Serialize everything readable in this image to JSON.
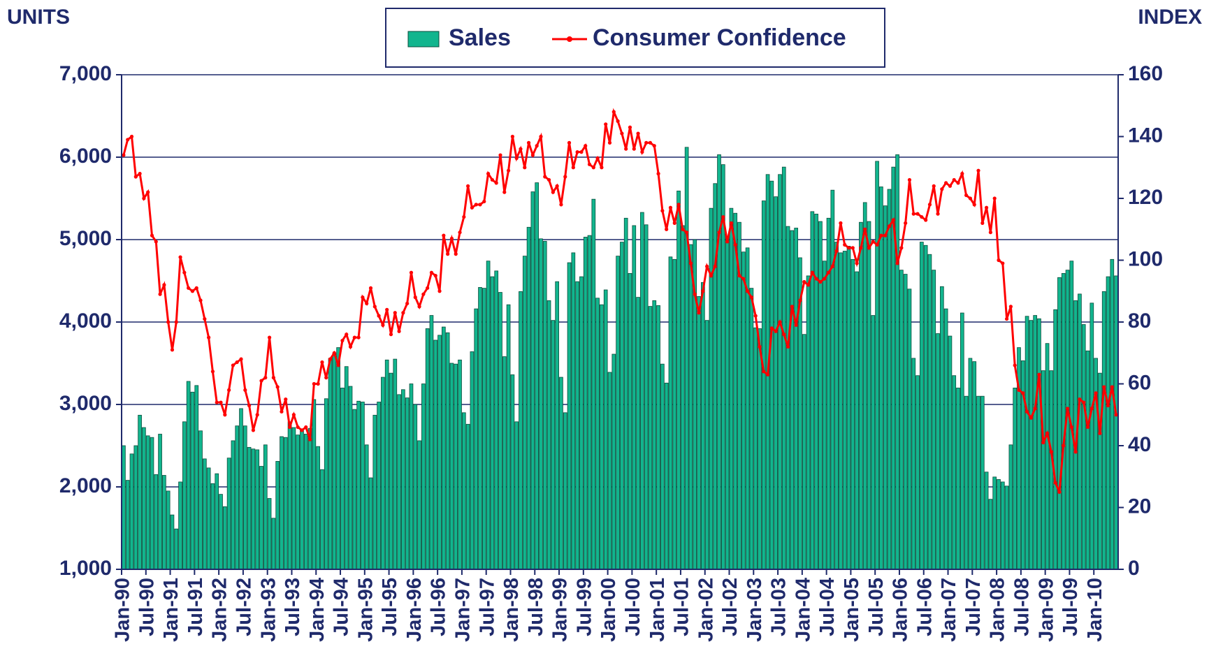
{
  "chart_data": {
    "type": "combo",
    "left_axis_title": "UNITS",
    "right_axis_title": "INDEX",
    "ylim": [
      1000,
      7000
    ],
    "yticks": [
      {
        "value": 1000,
        "label": "1,000"
      },
      {
        "value": 2000,
        "label": "2,000"
      },
      {
        "value": 3000,
        "label": "3,000"
      },
      {
        "value": 4000,
        "label": "4,000"
      },
      {
        "value": 5000,
        "label": "5,000"
      },
      {
        "value": 6000,
        "label": "6,000"
      },
      {
        "value": 7000,
        "label": "7,000"
      }
    ],
    "y2lim": [
      0,
      160
    ],
    "y2ticks": [
      0,
      20,
      40,
      60,
      80,
      100,
      120,
      140,
      160
    ],
    "grid": true,
    "legend": "top",
    "categories": [
      "Jan-90",
      null,
      null,
      null,
      null,
      null,
      "Jul-90",
      null,
      null,
      null,
      null,
      null,
      "Jan-91",
      null,
      null,
      null,
      null,
      null,
      "Jul-91",
      null,
      null,
      null,
      null,
      null,
      "Jan-92",
      null,
      null,
      null,
      null,
      null,
      "Jul-92",
      null,
      null,
      null,
      null,
      null,
      "Jan-93",
      null,
      null,
      null,
      null,
      null,
      "Jul-93",
      null,
      null,
      null,
      null,
      null,
      "Jan-94",
      null,
      null,
      null,
      null,
      null,
      "Jul-94",
      null,
      null,
      null,
      null,
      null,
      "Jan-95",
      null,
      null,
      null,
      null,
      null,
      "Jul-95",
      null,
      null,
      null,
      null,
      null,
      "Jan-96",
      null,
      null,
      null,
      null,
      null,
      "Jul-96",
      null,
      null,
      null,
      null,
      null,
      "Jan-97",
      null,
      null,
      null,
      null,
      null,
      "Jul-97",
      null,
      null,
      null,
      null,
      null,
      "Jan-98",
      null,
      null,
      null,
      null,
      null,
      "Jul-98",
      null,
      null,
      null,
      null,
      null,
      "Jan-99",
      null,
      null,
      null,
      null,
      null,
      "Jul-99",
      null,
      null,
      null,
      null,
      null,
      "Jan-00",
      null,
      null,
      null,
      null,
      null,
      "Jul-00",
      null,
      null,
      null,
      null,
      null,
      "Jan-01",
      null,
      null,
      null,
      null,
      null,
      "Jul-01",
      null,
      null,
      null,
      null,
      null,
      "Jan-02",
      null,
      null,
      null,
      null,
      null,
      "Jul-02",
      null,
      null,
      null,
      null,
      null,
      "Jan-03",
      null,
      null,
      null,
      null,
      null,
      "Jul-03",
      null,
      null,
      null,
      null,
      null,
      "Jan-04",
      null,
      null,
      null,
      null,
      null,
      "Jul-04",
      null,
      null,
      null,
      null,
      null,
      "Jan-05",
      null,
      null,
      null,
      null,
      null,
      "Jul-05",
      null,
      null,
      null,
      null,
      null,
      "Jan-06",
      null,
      null,
      null,
      null,
      null,
      "Jul-06",
      null,
      null,
      null,
      null,
      null,
      "Jan-07",
      null,
      null,
      null,
      null,
      null,
      "Jul-07",
      null,
      null,
      null,
      null,
      null,
      "Jan-08",
      null,
      null,
      null,
      null,
      null,
      "Jul-08",
      null,
      null,
      null,
      null,
      null,
      "Jan-09",
      null,
      null,
      null,
      null,
      null,
      "Jul-09",
      null,
      null,
      null,
      null,
      null,
      "Jan-10",
      null,
      null,
      null,
      null,
      null
    ],
    "series": [
      {
        "name": "Sales",
        "type": "bar",
        "color": "#12b58e",
        "values": [
          2500,
          2080,
          2400,
          2500,
          2870,
          2720,
          2620,
          2600,
          2150,
          2640,
          2140,
          1950,
          1660,
          1490,
          2060,
          2790,
          3280,
          3150,
          3230,
          2680,
          2340,
          2230,
          2040,
          2160,
          1910,
          1760,
          2350,
          2560,
          2740,
          2950,
          2740,
          2480,
          2460,
          2450,
          2250,
          2510,
          1860,
          1620,
          2310,
          2610,
          2600,
          2790,
          2720,
          2630,
          2700,
          2640,
          2710,
          3060,
          2490,
          2210,
          3070,
          3560,
          3620,
          3690,
          3200,
          3460,
          3220,
          2940,
          3040,
          3030,
          2510,
          2110,
          2870,
          3030,
          3330,
          3540,
          3380,
          3550,
          3120,
          3180,
          3080,
          3250,
          3000,
          2560,
          3250,
          3920,
          4080,
          3780,
          3840,
          3940,
          3870,
          3500,
          3490,
          3540,
          2900,
          2760,
          3640,
          4160,
          4420,
          4410,
          4740,
          4550,
          4620,
          4360,
          3580,
          4210,
          3360,
          2790,
          4370,
          4800,
          5150,
          5580,
          5690,
          5010,
          4980,
          4260,
          4020,
          4490,
          3330,
          2900,
          4720,
          4840,
          4490,
          4550,
          5030,
          5050,
          5490,
          4290,
          4210,
          4390,
          3390,
          3610,
          4800,
          4970,
          5260,
          4590,
          5170,
          4300,
          5330,
          5180,
          4190,
          4260,
          4200,
          3490,
          3260,
          4790,
          4760,
          5590,
          5170,
          6120,
          4940,
          5000,
          4310,
          4480,
          4020,
          5380,
          5680,
          6030,
          5910,
          5040,
          5380,
          5320,
          5210,
          4850,
          4900,
          4410,
          3930,
          3920,
          5470,
          5790,
          5710,
          5520,
          5790,
          5880,
          5160,
          5110,
          5140,
          4780,
          3850,
          4560,
          5340,
          5310,
          5220,
          4740,
          5260,
          5600,
          4970,
          4840,
          4860,
          4920,
          4760,
          4610,
          5210,
          5450,
          5220,
          4080,
          5950,
          5640,
          5410,
          5610,
          5880,
          6030,
          4630,
          4580,
          4400,
          3560,
          3350,
          4970,
          4930,
          4820,
          4630,
          3860,
          4430,
          4160,
          3830,
          3350,
          3200,
          4110,
          3100,
          3560,
          3520,
          3100,
          3100,
          2180,
          1850,
          2120,
          2090,
          2060,
          2010,
          2510,
          3200,
          3690,
          3530,
          4070,
          4020,
          4080,
          4040,
          3410,
          3740,
          3410,
          4150,
          4540,
          4590,
          4630,
          4740,
          4260,
          4340,
          3970,
          3650,
          4230,
          3560,
          3380,
          4370,
          4550,
          4760,
          4560
        ]
      },
      {
        "name": "Consumer Confidence",
        "type": "line",
        "axis": "y2",
        "color": "#ff0000",
        "values": [
          134,
          139,
          140,
          127,
          128,
          120,
          122,
          108,
          106,
          89,
          92,
          80,
          71,
          80,
          101,
          96,
          91,
          90,
          91,
          87,
          81,
          75,
          64,
          54,
          54,
          50,
          58,
          66,
          67,
          68,
          58,
          53,
          45,
          50,
          61,
          62,
          75,
          62,
          59,
          51,
          55,
          46,
          50,
          46,
          45,
          46,
          42,
          60,
          60,
          67,
          62,
          68,
          70,
          66,
          74,
          76,
          72,
          75,
          75,
          88,
          86,
          91,
          85,
          82,
          79,
          84,
          76,
          83,
          77,
          83,
          86,
          96,
          88,
          85,
          89,
          91,
          96,
          95,
          90,
          108,
          102,
          107,
          102,
          109,
          114,
          124,
          117,
          118,
          118,
          119,
          128,
          126,
          125,
          134,
          122,
          129,
          140,
          133,
          136,
          130,
          138,
          134,
          137,
          140,
          127,
          126,
          122,
          124,
          118,
          127,
          138,
          130,
          135,
          135,
          137,
          131,
          130,
          133,
          130,
          144,
          138,
          148,
          145,
          141,
          136,
          143,
          136,
          141,
          135,
          138,
          138,
          137,
          128,
          116,
          110,
          117,
          112,
          118,
          110,
          109,
          99,
          89,
          83,
          90,
          98,
          95,
          98,
          109,
          114,
          106,
          112,
          105,
          95,
          94,
          90,
          88,
          82,
          72,
          64,
          63,
          78,
          77,
          80,
          76,
          72,
          85,
          79,
          87,
          93,
          92,
          96,
          94,
          93,
          94,
          96,
          98,
          103,
          112,
          105,
          104,
          104,
          99,
          104,
          110,
          104,
          106,
          105,
          108,
          108,
          111,
          113,
          99,
          104,
          112,
          126,
          115,
          115,
          114,
          113,
          118,
          124,
          115,
          123,
          125,
          124,
          126,
          125,
          128,
          121,
          120,
          118,
          129,
          112,
          117,
          109,
          120,
          100,
          99,
          81,
          85,
          66,
          58,
          57,
          51,
          49,
          52,
          63,
          41,
          44,
          38,
          28,
          25,
          40,
          52,
          46,
          38,
          55,
          54,
          46,
          52,
          57,
          44,
          59,
          53,
          59,
          50
        ]
      }
    ]
  }
}
